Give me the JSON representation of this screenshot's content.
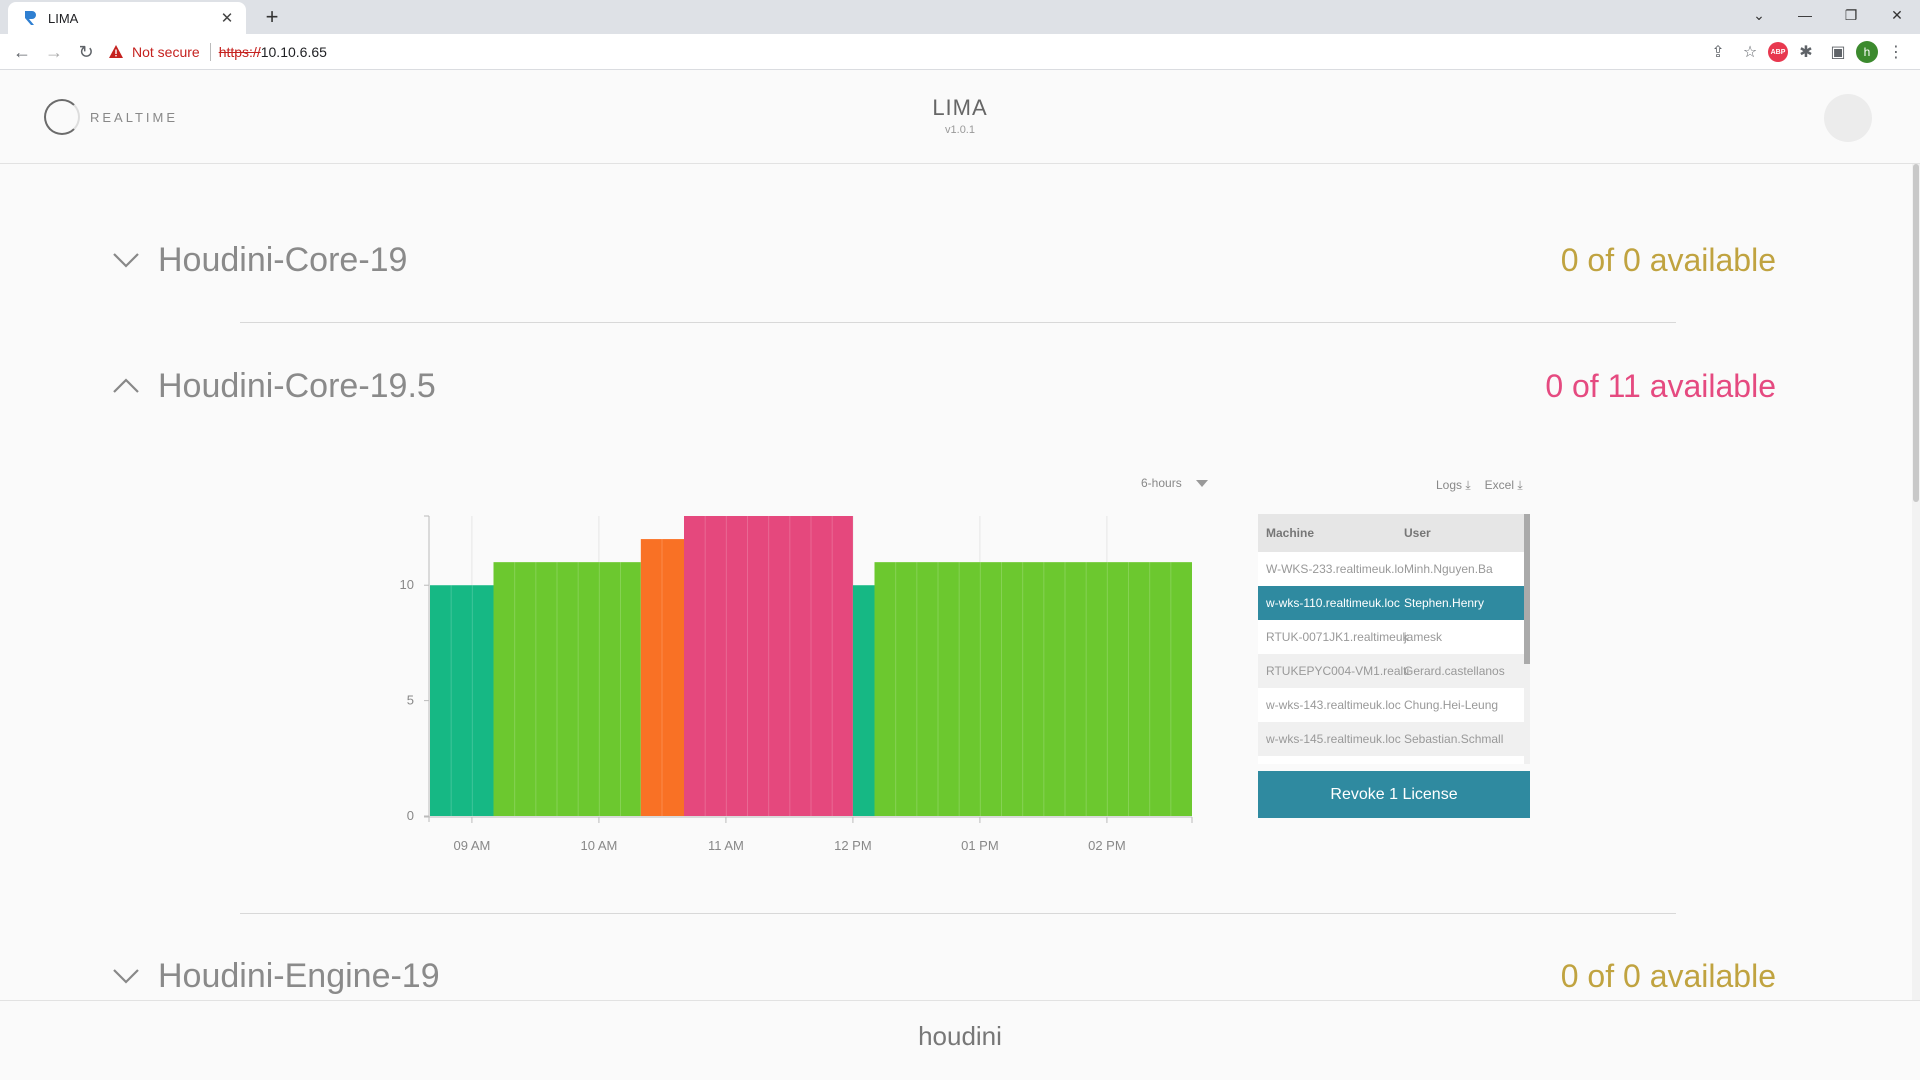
{
  "browser": {
    "tab_title": "LIMA",
    "new_tab": "+",
    "security_label": "Not secure",
    "url_protocol": "https://",
    "url_host": "10.10.6.65",
    "profile_initial": "h",
    "adblock_label": "ABP"
  },
  "app": {
    "logo_text": "REALTIME",
    "title": "LIMA",
    "version": "v1.0.1"
  },
  "sections": [
    {
      "name": "Houdini-Core-19",
      "availability": "0 of 0 available",
      "expanded": false,
      "status_color": "#c0a340"
    },
    {
      "name": "Houdini-Core-19.5",
      "availability": "0 of 11 available",
      "expanded": true,
      "status_color": "#e54a80"
    },
    {
      "name": "Houdini-Engine-19",
      "availability": "0 of 0 available",
      "expanded": false,
      "status_color": "#c0a340"
    }
  ],
  "chart_controls": {
    "range": "6-hours",
    "logs_label": "Logs ⤓",
    "excel_label": "Excel ⤓"
  },
  "chart_data": {
    "type": "bar",
    "ylim": [
      0,
      13
    ],
    "y_ticks": [
      0,
      5,
      10
    ],
    "x_ticks": [
      "09 AM",
      "10 AM",
      "11 AM",
      "12 PM",
      "01 PM",
      "02 PM"
    ],
    "x_tick_hours": [
      9,
      10,
      11,
      12,
      13,
      14
    ],
    "x_range_hours": [
      8.67,
      14.67
    ],
    "segments": [
      {
        "start": 8.67,
        "end": 9.17,
        "value": 10,
        "color": "#16b884"
      },
      {
        "start": 9.17,
        "end": 10.33,
        "value": 11,
        "color": "#6cc82f"
      },
      {
        "start": 10.33,
        "end": 10.67,
        "value": 12,
        "color": "#f97125"
      },
      {
        "start": 10.67,
        "end": 12.0,
        "value": 13,
        "color": "#e5487d"
      },
      {
        "start": 12.0,
        "end": 12.17,
        "value": 10,
        "color": "#16b884"
      },
      {
        "start": 12.17,
        "end": 14.67,
        "value": 11,
        "color": "#6cc82f"
      }
    ],
    "grid": true
  },
  "table": {
    "headers": [
      "Machine",
      "User"
    ],
    "rows": [
      {
        "machine": "W-WKS-233.realtimeuk.lo",
        "user": "Minh.Nguyen.Ba",
        "selected": false
      },
      {
        "machine": "w-wks-110.realtimeuk.loc",
        "user": "Stephen.Henry",
        "selected": true
      },
      {
        "machine": "RTUK-0071JK1.realtimeuk",
        "user": "jamesk",
        "selected": false
      },
      {
        "machine": "RTUKEPYC004-VM1.realti",
        "user": "Gerard.castellanos",
        "selected": false
      },
      {
        "machine": "w-wks-143.realtimeuk.loc",
        "user": "Chung.Hei-Leung",
        "selected": false
      },
      {
        "machine": "w-wks-145.realtimeuk.loc",
        "user": "Sebastian.Schmall",
        "selected": false
      }
    ],
    "revoke_label": "Revoke 1 License"
  },
  "footer": {
    "label": "houdini"
  }
}
